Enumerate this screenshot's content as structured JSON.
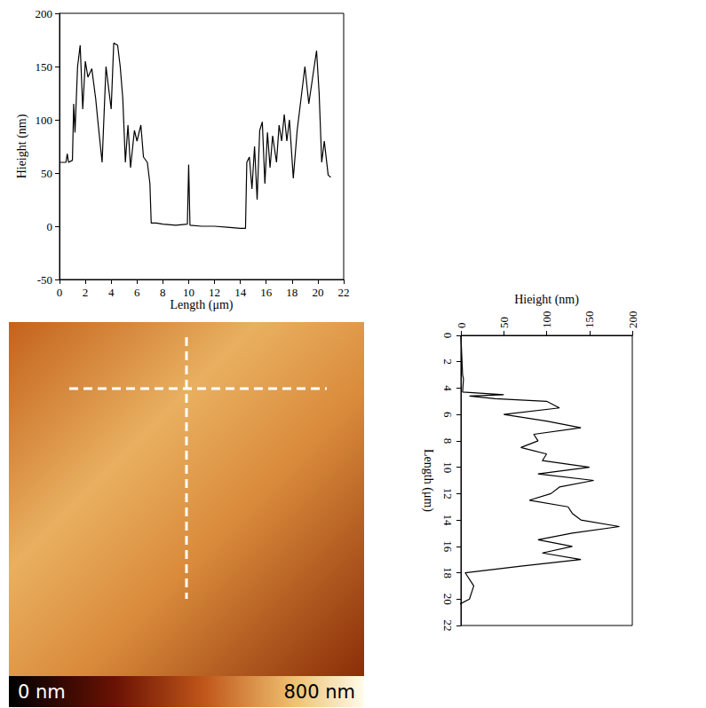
{
  "chart_data": [
    {
      "type": "line",
      "x_label": "Length (μm)",
      "y_label": "Hieight (nm)",
      "x": [
        0,
        0.5,
        0.6,
        0.7,
        1.0,
        1.1,
        1.2,
        1.4,
        1.6,
        1.8,
        2.0,
        2.2,
        2.5,
        2.8,
        3.0,
        3.3,
        3.6,
        3.8,
        4.0,
        4.2,
        4.5,
        4.7,
        4.9,
        5.1,
        5.3,
        5.5,
        5.8,
        6.0,
        6.3,
        6.5,
        6.8,
        7.0,
        7.1,
        7.5,
        8.0,
        9.0,
        9.9,
        10.0,
        10.1,
        11.0,
        12.0,
        13.0,
        14.0,
        14.4,
        14.5,
        14.7,
        14.9,
        15.1,
        15.3,
        15.5,
        15.7,
        15.9,
        16.1,
        16.3,
        16.5,
        16.8,
        17.0,
        17.2,
        17.4,
        17.6,
        17.8,
        18.1,
        18.4,
        18.7,
        19.0,
        19.3,
        19.6,
        19.9,
        20.1,
        20.3,
        20.5,
        20.8,
        21.0
      ],
      "values": [
        60,
        60,
        68,
        60,
        62,
        115,
        88,
        150,
        170,
        110,
        155,
        140,
        148,
        120,
        95,
        60,
        150,
        130,
        110,
        172,
        170,
        150,
        120,
        60,
        95,
        55,
        90,
        80,
        95,
        65,
        60,
        40,
        3,
        3,
        2,
        1,
        2,
        58,
        1,
        0,
        0,
        -1,
        -2,
        -2,
        60,
        65,
        35,
        75,
        25,
        90,
        98,
        40,
        88,
        55,
        85,
        60,
        95,
        80,
        105,
        80,
        100,
        45,
        90,
        120,
        150,
        115,
        140,
        165,
        125,
        60,
        80,
        48,
        46
      ],
      "color": "#000000",
      "xlim": [
        0,
        22
      ],
      "xticks": [
        0,
        2,
        4,
        6,
        8,
        10,
        12,
        14,
        16,
        18,
        20,
        22
      ],
      "ylim": [
        -50,
        200
      ],
      "yticks": [
        -50,
        0,
        50,
        100,
        150,
        200
      ],
      "grid": false
    },
    {
      "type": "line",
      "x_label": "Hieight (nm)",
      "y_label": "Length (μm)",
      "x": [
        0,
        2,
        3,
        2,
        50,
        10,
        40,
        100,
        115,
        50,
        100,
        140,
        85,
        90,
        70,
        100,
        95,
        150,
        90,
        155,
        115,
        105,
        80,
        125,
        130,
        140,
        185,
        130,
        90,
        130,
        95,
        140,
        70,
        5,
        15,
        10,
        -5,
        -8
      ],
      "values": [
        0,
        3,
        3.3,
        4.3,
        4.5,
        4.6,
        4.8,
        5,
        5.5,
        6,
        6.5,
        7,
        7.5,
        8,
        8.5,
        9,
        9.5,
        10,
        10.5,
        11,
        11.5,
        12,
        12.5,
        13,
        13.5,
        14,
        14.5,
        15,
        15.5,
        16,
        16.5,
        17,
        17.5,
        18,
        19,
        20,
        20.5,
        20.8
      ],
      "color": "#000000",
      "xlim": [
        0,
        200
      ],
      "xticks": [
        0,
        50,
        100,
        150,
        200
      ],
      "ylim": [
        0,
        22
      ],
      "yticks": [
        0,
        2,
        4,
        6,
        8,
        10,
        12,
        14,
        16,
        18,
        20,
        22
      ],
      "grid": false
    }
  ],
  "image": {
    "colorbar": {
      "range": [
        0,
        800
      ],
      "ticks": [
        {
          "value": 0,
          "label": "0 nm"
        },
        {
          "value": 800,
          "label": "800 nm"
        }
      ]
    }
  }
}
